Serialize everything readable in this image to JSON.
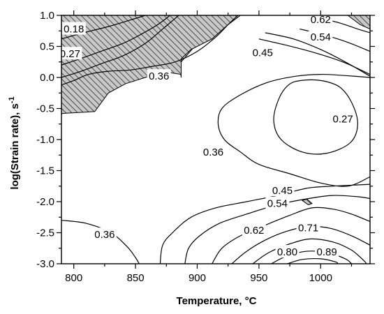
{
  "chart_data": {
    "type": "contour",
    "xlabel_text": "Temperature, ",
    "xlabel_unit": "°C",
    "ylabel_text": "log(Strain rate), s",
    "ylabel_exp": "-1",
    "xlim": [
      790,
      1040
    ],
    "ylim": [
      -3.0,
      1.0
    ],
    "x_ticks": [
      {
        "value": 800,
        "label": "800"
      },
      {
        "value": 850,
        "label": "850"
      },
      {
        "value": 900,
        "label": "900"
      },
      {
        "value": 950,
        "label": "950"
      },
      {
        "value": 1000,
        "label": "1000"
      }
    ],
    "y_ticks": [
      {
        "value": 1.0,
        "label": "1.0"
      },
      {
        "value": 0.5,
        "label": "0.5"
      },
      {
        "value": 0.0,
        "label": "0.0"
      },
      {
        "value": -0.5,
        "label": "-0.5"
      },
      {
        "value": -1.0,
        "label": "-1.0"
      },
      {
        "value": -1.5,
        "label": "-1.5"
      },
      {
        "value": -2.0,
        "label": "-2.0"
      },
      {
        "value": -2.5,
        "label": "-2.5"
      },
      {
        "value": -3.0,
        "label": "-3.0"
      }
    ],
    "instability_regions": [
      {
        "name": "hatched-instability-region",
        "points": [
          [
            790,
            1.0
          ],
          [
            857,
            1.0
          ],
          [
            848,
            0.9
          ],
          [
            835,
            0.75
          ],
          [
            822,
            0.58
          ],
          [
            808,
            0.35
          ],
          [
            798,
            0.12
          ],
          [
            793,
            -0.05
          ],
          [
            790,
            -0.1
          ]
        ]
      },
      {
        "name": "hatched-instability-region",
        "points": [
          [
            790,
            -0.1
          ],
          [
            793,
            -0.05
          ],
          [
            798,
            0.12
          ],
          [
            808,
            0.35
          ],
          [
            822,
            0.58
          ],
          [
            835,
            0.75
          ],
          [
            848,
            0.9
          ],
          [
            857,
            1.0
          ],
          [
            890,
            1.0
          ],
          [
            878,
            0.85
          ],
          [
            858,
            0.5
          ],
          [
            842,
            0.3
          ],
          [
            822,
            0.18
          ],
          [
            805,
            0.06
          ],
          [
            800,
            -0.15
          ],
          [
            797,
            -0.4
          ],
          [
            790,
            -0.6
          ]
        ]
      },
      {
        "name": "hatched-instability-region",
        "points": [
          [
            857,
            1.0
          ],
          [
            890,
            1.0
          ],
          [
            878,
            0.85
          ],
          [
            860,
            0.52
          ],
          [
            870,
            0.35
          ],
          [
            885,
            0.3
          ],
          [
            887,
            0.0
          ],
          [
            887,
            0.25
          ],
          [
            900,
            0.55
          ],
          [
            912,
            0.8
          ],
          [
            922,
            1.0
          ]
        ]
      },
      {
        "name": "hatched-instability-region",
        "points": [
          [
            790,
            1.0
          ],
          [
            935,
            1.0
          ],
          [
            925,
            0.85
          ],
          [
            912,
            0.62
          ],
          [
            895,
            0.45
          ],
          [
            887,
            0.3
          ],
          [
            887,
            0.05
          ],
          [
            870,
            0.1
          ],
          [
            858,
            0.0
          ],
          [
            842,
            -0.1
          ],
          [
            828,
            -0.25
          ],
          [
            817,
            -0.55
          ],
          [
            790,
            -0.58
          ]
        ]
      },
      {
        "name": "hatched-instability-region",
        "points": [
          [
            1022,
            1.0
          ],
          [
            1040,
            1.0
          ],
          [
            1040,
            0.78
          ],
          [
            1032,
            0.85
          ]
        ]
      },
      {
        "name": "hatched-instability-region",
        "points": [
          [
            985,
            -1.98
          ],
          [
            989,
            -1.96
          ],
          [
            993,
            -2.03
          ],
          [
            990,
            -2.05
          ]
        ]
      }
    ],
    "contours": [
      {
        "level": "0.18",
        "points": [
          [
            790,
            0.62
          ],
          [
            808,
            0.72
          ],
          [
            828,
            0.82
          ],
          [
            845,
            0.92
          ],
          [
            858,
            1.0
          ]
        ]
      },
      {
        "level": "0.27",
        "points": [
          [
            790,
            0.2
          ],
          [
            805,
            0.3
          ],
          [
            822,
            0.42
          ],
          [
            840,
            0.55
          ],
          [
            855,
            0.7
          ],
          [
            868,
            0.85
          ],
          [
            878,
            1.0
          ]
        ]
      },
      {
        "level": "0.27",
        "points": [
          [
            984,
            -0.05
          ],
          [
            1000,
            -0.05
          ],
          [
            1015,
            -0.15
          ],
          [
            1025,
            -0.4
          ],
          [
            1030,
            -0.75
          ],
          [
            1024,
            -1.05
          ],
          [
            1005,
            -1.22
          ],
          [
            985,
            -1.2
          ],
          [
            968,
            -1.0
          ],
          [
            962,
            -0.7
          ],
          [
            966,
            -0.35
          ],
          [
            974,
            -0.12
          ],
          [
            984,
            -0.05
          ]
        ]
      },
      {
        "label_only": true,
        "level": "0.36"
      },
      {
        "level": "0.36",
        "points": [
          [
            790,
            0.0
          ],
          [
            806,
            0.1
          ],
          [
            822,
            0.22
          ],
          [
            840,
            0.35
          ],
          [
            858,
            0.55
          ],
          [
            872,
            0.78
          ],
          [
            885,
            1.0
          ]
        ]
      },
      {
        "level": "0.36",
        "points": [
          [
            790,
            -0.12
          ],
          [
            800,
            -0.05
          ],
          [
            812,
            0.05
          ],
          [
            828,
            0.1
          ],
          [
            846,
            0.12
          ],
          [
            864,
            0.18
          ],
          [
            882,
            0.25
          ],
          [
            900,
            0.42
          ],
          [
            915,
            0.65
          ],
          [
            925,
            0.85
          ],
          [
            933,
            1.0
          ]
        ]
      },
      {
        "level": "0.36",
        "points": [
          [
            955,
            0.72
          ],
          [
            978,
            0.62
          ],
          [
            1000,
            0.45
          ],
          [
            1020,
            0.25
          ],
          [
            1040,
            0.02
          ]
        ]
      },
      {
        "level": "0.36",
        "points": [
          [
            1040,
            -1.6
          ],
          [
            1022,
            -1.75
          ],
          [
            1000,
            -1.7
          ],
          [
            975,
            -1.55
          ],
          [
            950,
            -1.4
          ],
          [
            935,
            -1.2
          ],
          [
            922,
            -1.0
          ],
          [
            917,
            -0.75
          ],
          [
            920,
            -0.5
          ],
          [
            935,
            -0.28
          ],
          [
            957,
            -0.08
          ],
          [
            980,
            0.02
          ],
          [
            1000,
            0.05
          ],
          [
            1020,
            0.03
          ],
          [
            1040,
            0.0
          ]
        ]
      },
      {
        "level": "0.36",
        "points": [
          [
            790,
            -2.3
          ],
          [
            810,
            -2.35
          ],
          [
            830,
            -2.5
          ],
          [
            843,
            -2.72
          ],
          [
            850,
            -2.9
          ],
          [
            853,
            -3.0
          ]
        ]
      },
      {
        "level": "0.36",
        "points": [
          [
            870,
            -3.0
          ],
          [
            872,
            -2.7
          ],
          [
            880,
            -2.5
          ],
          [
            895,
            -2.25
          ],
          [
            915,
            -2.1
          ],
          [
            940,
            -2.0
          ],
          [
            965,
            -1.9
          ],
          [
            990,
            -1.78
          ],
          [
            1010,
            -1.75
          ],
          [
            1030,
            -1.73
          ],
          [
            1040,
            -1.72
          ]
        ]
      },
      {
        "level": "0.45",
        "points": [
          [
            950,
            0.62
          ],
          [
            972,
            0.52
          ],
          [
            995,
            0.4
          ],
          [
            1018,
            0.25
          ],
          [
            1040,
            0.05
          ]
        ]
      },
      {
        "level": "0.54",
        "points": [
          [
            983,
            0.78
          ],
          [
            1000,
            0.7
          ],
          [
            1020,
            0.58
          ],
          [
            1040,
            0.42
          ]
        ]
      },
      {
        "level": "0.62",
        "points": [
          [
            1000,
            0.95
          ],
          [
            1015,
            0.88
          ],
          [
            1030,
            0.78
          ],
          [
            1040,
            0.72
          ]
        ]
      },
      {
        "level": "0.45",
        "points": [
          [
            890,
            -3.0
          ],
          [
            893,
            -2.75
          ],
          [
            902,
            -2.55
          ],
          [
            918,
            -2.35
          ],
          [
            940,
            -2.2
          ],
          [
            965,
            -2.05
          ],
          [
            990,
            -1.95
          ],
          [
            1010,
            -1.9
          ],
          [
            1030,
            -1.92
          ],
          [
            1040,
            -1.95
          ]
        ]
      },
      {
        "level": "0.54",
        "points": [
          [
            912,
            -3.0
          ],
          [
            920,
            -2.75
          ],
          [
            935,
            -2.55
          ],
          [
            955,
            -2.38
          ],
          [
            975,
            -2.22
          ],
          [
            993,
            -2.1
          ],
          [
            1010,
            -2.12
          ],
          [
            1025,
            -2.2
          ],
          [
            1040,
            -2.32
          ]
        ]
      },
      {
        "level": "0.62",
        "points": [
          [
            928,
            -3.0
          ],
          [
            940,
            -2.8
          ],
          [
            955,
            -2.62
          ],
          [
            972,
            -2.48
          ],
          [
            990,
            -2.4
          ],
          [
            1008,
            -2.43
          ],
          [
            1025,
            -2.55
          ],
          [
            1040,
            -2.7
          ]
        ]
      },
      {
        "level": "0.71",
        "points": [
          [
            945,
            -3.0
          ],
          [
            958,
            -2.82
          ],
          [
            975,
            -2.68
          ],
          [
            992,
            -2.6
          ],
          [
            1010,
            -2.65
          ],
          [
            1025,
            -2.78
          ],
          [
            1035,
            -2.95
          ],
          [
            1037,
            -3.0
          ]
        ]
      },
      {
        "level": "0.80",
        "points": [
          [
            960,
            -3.0
          ],
          [
            972,
            -2.88
          ],
          [
            988,
            -2.8
          ],
          [
            1005,
            -2.82
          ],
          [
            1020,
            -2.92
          ],
          [
            1025,
            -3.0
          ]
        ]
      },
      {
        "level": "0.89",
        "points": [
          [
            973,
            -3.0
          ],
          [
            985,
            -2.93
          ],
          [
            1000,
            -2.92
          ],
          [
            1012,
            -2.97
          ],
          [
            1014,
            -3.0
          ]
        ]
      }
    ],
    "contour_labels": [
      {
        "text": "0.18",
        "x": 800,
        "y": 0.78
      },
      {
        "text": "0.27",
        "x": 797,
        "y": 0.38
      },
      {
        "text": "0.36",
        "x": 869,
        "y": 0.02
      },
      {
        "text": "0.62",
        "x": 1000,
        "y": 0.93
      },
      {
        "text": "0.54",
        "x": 1000,
        "y": 0.65
      },
      {
        "text": "0.45",
        "x": 953,
        "y": 0.4
      },
      {
        "text": "0.27",
        "x": 1018,
        "y": -0.67
      },
      {
        "text": "0.36",
        "x": 913,
        "y": -1.2
      },
      {
        "text": "0.45",
        "x": 969,
        "y": -1.82
      },
      {
        "text": "0.54",
        "x": 965,
        "y": -2.03
      },
      {
        "text": "0.36",
        "x": 825,
        "y": -2.53
      },
      {
        "text": "0.62",
        "x": 946,
        "y": -2.46
      },
      {
        "text": "0.71",
        "x": 990,
        "y": -2.42
      },
      {
        "text": "0.80",
        "x": 973,
        "y": -2.81
      },
      {
        "text": "0.89",
        "x": 1005,
        "y": -2.81
      }
    ],
    "grid": false
  }
}
